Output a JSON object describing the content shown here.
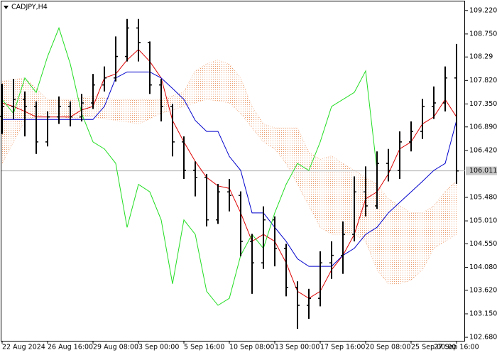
{
  "chart_data": {
    "type": "ohlc",
    "title": "CADJPY,H4",
    "ylim": [
      102.61,
      109.43
    ],
    "yticks": [
      {
        "value": 109.22,
        "label": "109.220"
      },
      {
        "value": 108.75,
        "label": "108.750"
      },
      108.29,
      {
        "value": 107.82,
        "label": "107.820"
      },
      {
        "value": 107.35,
        "label": "107.350"
      },
      {
        "value": 106.89,
        "label": "106.890"
      },
      {
        "value": 106.42,
        "label": "106.420"
      },
      {
        "value": 105.48,
        "label": "105.480"
      },
      {
        "value": 105.01,
        "label": "105.010"
      },
      {
        "value": 104.55,
        "label": "104.550"
      },
      {
        "value": 104.08,
        "label": "104.080"
      },
      {
        "value": 103.62,
        "label": "103.620"
      },
      {
        "value": 103.15,
        "label": "103.150"
      },
      {
        "value": 102.68,
        "label": "102.680"
      }
    ],
    "xticks": [
      {
        "value": 0,
        "label": "22 Aug 2024"
      },
      {
        "value": 4,
        "label": "26 Aug 16:00"
      },
      {
        "value": 8,
        "label": "29 Aug 08:00"
      },
      {
        "value": 12,
        "label": "3 Sep 00:00"
      },
      {
        "value": 16,
        "label": "5 Sep 16:00"
      },
      {
        "value": 20,
        "label": "10 Sep 08:00"
      },
      {
        "value": 24,
        "label": "13 Sep 00:00"
      },
      {
        "value": 28,
        "label": "17 Sep 16:00"
      },
      {
        "value": 32,
        "label": "20 Sep 08:00"
      },
      {
        "value": 36,
        "label": "25 Sep 00:00"
      },
      {
        "value": 40,
        "label": "27 Sep 16:00"
      }
    ],
    "color": "#000000",
    "open": [
      107.1,
      107.3,
      107.44,
      107.3,
      106.59,
      107.09,
      107.3,
      107.09,
      107.37,
      107.73,
      107.87,
      108.3,
      108.87,
      108.58,
      107.73,
      107.3,
      106.59,
      106.02,
      105.88,
      105.03,
      105.59,
      105.52,
      104.6,
      104.17,
      105.03,
      104.46,
      103.68,
      103.32,
      103.46,
      104.17,
      104.32,
      104.74,
      105.59,
      105.31,
      106.16,
      106.02,
      106.59,
      106.8,
      107.3,
      107.37,
      107.87
    ],
    "high": [
      107.75,
      107.85,
      107.6,
      107.4,
      107.2,
      107.5,
      107.4,
      107.55,
      107.95,
      108.1,
      108.7,
      109.05,
      109.05,
      108.6,
      107.85,
      107.35,
      106.7,
      106.2,
      105.95,
      105.75,
      105.85,
      105.6,
      104.75,
      105.3,
      105.1,
      104.55,
      103.8,
      103.65,
      104.4,
      104.6,
      105.0,
      105.9,
      106.1,
      106.4,
      106.45,
      106.8,
      107.0,
      107.45,
      107.7,
      108.1,
      108.55
    ],
    "low": [
      106.75,
      107.05,
      106.7,
      106.35,
      106.5,
      106.95,
      106.9,
      107.0,
      107.25,
      107.6,
      107.8,
      108.2,
      108.2,
      107.55,
      107.0,
      106.3,
      105.85,
      105.5,
      104.9,
      104.95,
      105.2,
      104.3,
      103.55,
      104.05,
      104.1,
      103.5,
      102.85,
      103.05,
      103.3,
      103.85,
      103.95,
      104.6,
      105.1,
      105.25,
      105.8,
      105.85,
      106.4,
      106.65,
      107.05,
      107.2,
      105.75
    ],
    "close": [
      107.3,
      107.44,
      107.3,
      106.59,
      107.09,
      107.3,
      107.09,
      107.37,
      107.73,
      107.87,
      108.3,
      108.87,
      108.58,
      107.73,
      107.3,
      106.59,
      106.02,
      105.88,
      105.03,
      105.59,
      105.52,
      104.6,
      104.17,
      105.03,
      104.46,
      103.68,
      103.32,
      103.46,
      104.17,
      104.32,
      104.74,
      105.59,
      105.31,
      106.16,
      106.02,
      106.59,
      106.8,
      107.3,
      107.37,
      107.87,
      106.01
    ],
    "series": [
      {
        "color": "#dd0000",
        "values": [
          107.37,
          107.3,
          107.2,
          107.09,
          107.09,
          107.09,
          107.09,
          107.23,
          107.3,
          107.87,
          107.95,
          108.23,
          108.44,
          108.2,
          107.87,
          107.02,
          106.59,
          106.2,
          105.88,
          105.71,
          105.66,
          105.17,
          104.6,
          104.74,
          104.6,
          104.17,
          103.6,
          103.46,
          103.6,
          104.03,
          104.32,
          104.74,
          105.45,
          105.59,
          105.95,
          106.45,
          106.59,
          106.95,
          107.09,
          107.44,
          107.09
        ]
      },
      {
        "color": "#0000cc",
        "values": [
          107.04,
          107.04,
          107.04,
          107.04,
          107.04,
          107.04,
          107.04,
          107.04,
          107.04,
          107.3,
          107.87,
          107.99,
          107.99,
          107.99,
          107.87,
          107.66,
          107.44,
          107.02,
          106.8,
          106.8,
          106.3,
          106.02,
          105.17,
          105.17,
          104.88,
          104.6,
          104.25,
          104.1,
          104.1,
          104.1,
          104.32,
          104.46,
          104.74,
          104.88,
          105.17,
          105.38,
          105.59,
          105.8,
          106.02,
          106.16,
          107.02
        ]
      },
      {
        "color": "#22dd22",
        "values": [
          107.44,
          107.16,
          107.87,
          107.58,
          108.3,
          108.87,
          108.15,
          107.16,
          106.59,
          106.45,
          106.16,
          104.88,
          105.74,
          105.59,
          105.03,
          103.75,
          105.03,
          104.74,
          103.6,
          103.32,
          103.46,
          104.32,
          104.74,
          104.46,
          105.17,
          105.74,
          106.16,
          106.02,
          106.59,
          107.3,
          107.44,
          107.58,
          108.01,
          106.02,
          null,
          null,
          null,
          null,
          null,
          null,
          null
        ]
      }
    ],
    "cloud": {
      "color": "#f0a070",
      "span_a": [
        107.8,
        107.84,
        107.87,
        107.66,
        107.44,
        107.44,
        107.44,
        107.47,
        107.51,
        107.47,
        107.44,
        107.44,
        107.44,
        107.44,
        107.44,
        107.51,
        107.59,
        108.01,
        108.15,
        108.23,
        108.15,
        107.87,
        107.3,
        106.95,
        106.87,
        106.87,
        106.87,
        106.38,
        106.24,
        106.31,
        106.16,
        106.02,
        105.88,
        105.74,
        105.45,
        105.31,
        105.17,
        105.17,
        105.31,
        105.6,
        105.81
      ],
      "span_b": [
        106.16,
        106.59,
        107.02,
        107.09,
        107.16,
        107.16,
        107.02,
        107.09,
        107.09,
        107.05,
        107.02,
        106.99,
        106.95,
        107.05,
        107.16,
        107.23,
        107.3,
        107.37,
        107.44,
        107.41,
        107.37,
        107.16,
        106.87,
        106.59,
        106.45,
        106.16,
        105.74,
        105.31,
        104.88,
        104.74,
        104.74,
        104.74,
        104.6,
        104.03,
        103.75,
        103.75,
        103.82,
        104.03,
        104.46,
        104.6,
        104.74
      ]
    },
    "last_price": 106.011
  }
}
